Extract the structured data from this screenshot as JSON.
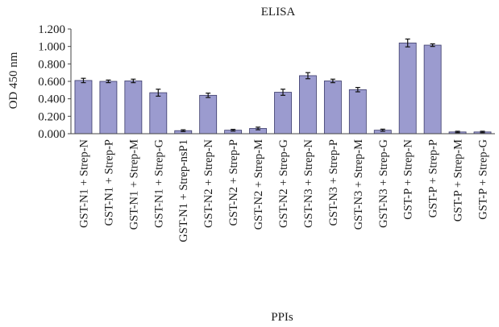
{
  "chart_data": {
    "type": "bar",
    "title": "ELISA",
    "xlabel": "PPIs",
    "ylabel": "OD 450 nm",
    "ylim": [
      0,
      1.2
    ],
    "yticks": [
      "0.000",
      "0.200",
      "0.400",
      "0.600",
      "0.800",
      "1.000",
      "1.200"
    ],
    "grid": false,
    "legend": "none",
    "bar_color": "#9b9bcf",
    "bar_edge_color": "#3a3a6a",
    "categories": [
      "GST-N1 + Strep-N",
      "GST-N1 + Strep-P",
      "GST-N1 + Strep-M",
      "GST-N1 + Strep-G",
      "GST-N1 + Strep-nsP1",
      "GST-N2 + Strep-N",
      "GST-N2 + Strep-P",
      "GST-N2 + Strep-M",
      "GST-N2 + Strep-G",
      "GST-N3 + Strep-N",
      "GST-N3 + Strep-P",
      "GST-N3 + Strep-M",
      "GST-N3 + Strep-G",
      "GST-P + Strep-N",
      "GST-P + Strep-P",
      "GST-P + Strep-M",
      "GST-P + Strep-G"
    ],
    "values": [
      0.61,
      0.6,
      0.605,
      0.47,
      0.035,
      0.44,
      0.04,
      0.06,
      0.475,
      0.665,
      0.605,
      0.505,
      0.04,
      1.04,
      1.015,
      0.02,
      0.02
    ],
    "errors": [
      0.025,
      0.015,
      0.02,
      0.04,
      0.01,
      0.025,
      0.01,
      0.015,
      0.035,
      0.035,
      0.02,
      0.025,
      0.012,
      0.045,
      0.015,
      0.008,
      0.008
    ]
  }
}
